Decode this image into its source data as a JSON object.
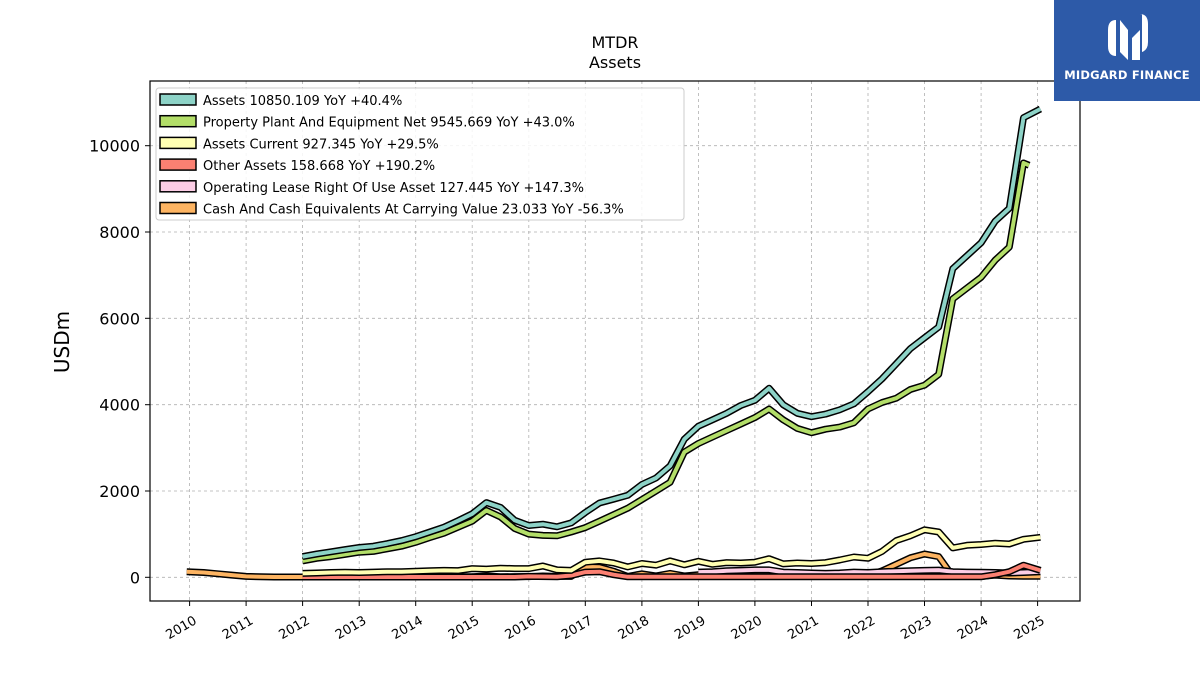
{
  "chart_data": {
    "type": "line",
    "title": "MTDR",
    "subtitle": "Assets",
    "ylabel": "USDm",
    "xlim": [
      2009.3,
      2025.75
    ],
    "ylim": [
      -550,
      11500
    ],
    "grid": true,
    "legend_position": "top-left",
    "x_ticks": [
      2010,
      2011,
      2012,
      2013,
      2014,
      2015,
      2016,
      2017,
      2018,
      2019,
      2020,
      2021,
      2022,
      2023,
      2024,
      2025
    ],
    "x_tick_labels": [
      "2010",
      "2011",
      "2012",
      "2013",
      "2014",
      "2015",
      "2016",
      "2017",
      "2018",
      "2019",
      "2020",
      "2021",
      "2022",
      "2023",
      "2024",
      "2025"
    ],
    "y_ticks": [
      0,
      2000,
      4000,
      6000,
      8000,
      10000
    ],
    "y_tick_labels": [
      "0",
      "2000",
      "4000",
      "6000",
      "8000",
      "10000"
    ],
    "series": [
      {
        "name": "Assets",
        "legend": "Assets  10850.109 YoY +40.4%",
        "color": "#8dd3c7",
        "points": [
          [
            2012.0,
            480
          ],
          [
            2012.25,
            540
          ],
          [
            2012.5,
            590
          ],
          [
            2012.75,
            640
          ],
          [
            2013.0,
            690
          ],
          [
            2013.25,
            720
          ],
          [
            2013.5,
            780
          ],
          [
            2013.75,
            850
          ],
          [
            2014.0,
            940
          ],
          [
            2014.25,
            1050
          ],
          [
            2014.5,
            1160
          ],
          [
            2014.75,
            1310
          ],
          [
            2015.0,
            1470
          ],
          [
            2015.25,
            1730
          ],
          [
            2015.5,
            1620
          ],
          [
            2015.75,
            1320
          ],
          [
            2016.0,
            1200
          ],
          [
            2016.25,
            1230
          ],
          [
            2016.5,
            1170
          ],
          [
            2016.75,
            1260
          ],
          [
            2017.0,
            1500
          ],
          [
            2017.25,
            1720
          ],
          [
            2017.5,
            1810
          ],
          [
            2017.75,
            1900
          ],
          [
            2018.0,
            2150
          ],
          [
            2018.25,
            2300
          ],
          [
            2018.5,
            2580
          ],
          [
            2018.75,
            3200
          ],
          [
            2019.0,
            3500
          ],
          [
            2019.25,
            3650
          ],
          [
            2019.5,
            3800
          ],
          [
            2019.75,
            3980
          ],
          [
            2020.0,
            4100
          ],
          [
            2020.25,
            4380
          ],
          [
            2020.5,
            4000
          ],
          [
            2020.75,
            3800
          ],
          [
            2021.0,
            3720
          ],
          [
            2021.25,
            3780
          ],
          [
            2021.5,
            3880
          ],
          [
            2021.75,
            4020
          ],
          [
            2022.0,
            4300
          ],
          [
            2022.25,
            4600
          ],
          [
            2022.5,
            4950
          ],
          [
            2022.75,
            5300
          ],
          [
            2023.0,
            5550
          ],
          [
            2023.25,
            5800
          ],
          [
            2023.5,
            7150
          ],
          [
            2023.75,
            7450
          ],
          [
            2024.0,
            7750
          ],
          [
            2024.25,
            8250
          ],
          [
            2024.5,
            8550
          ],
          [
            2024.75,
            10650
          ],
          [
            2025.05,
            10850
          ]
        ]
      },
      {
        "name": "Property Plant And Equipment Net",
        "legend": "Property Plant And Equipment Net  9545.669 YoY +43.0%",
        "color": "#b3de69",
        "points": [
          [
            2012.0,
            380
          ],
          [
            2012.25,
            440
          ],
          [
            2012.5,
            480
          ],
          [
            2012.75,
            530
          ],
          [
            2013.0,
            580
          ],
          [
            2013.25,
            600
          ],
          [
            2013.5,
            660
          ],
          [
            2013.75,
            720
          ],
          [
            2014.0,
            810
          ],
          [
            2014.25,
            920
          ],
          [
            2014.5,
            1020
          ],
          [
            2014.75,
            1160
          ],
          [
            2015.0,
            1300
          ],
          [
            2015.25,
            1550
          ],
          [
            2015.5,
            1400
          ],
          [
            2015.75,
            1130
          ],
          [
            2016.0,
            1000
          ],
          [
            2016.25,
            970
          ],
          [
            2016.5,
            960
          ],
          [
            2016.75,
            1050
          ],
          [
            2017.0,
            1150
          ],
          [
            2017.25,
            1300
          ],
          [
            2017.5,
            1450
          ],
          [
            2017.75,
            1600
          ],
          [
            2018.0,
            1800
          ],
          [
            2018.25,
            2000
          ],
          [
            2018.5,
            2200
          ],
          [
            2018.75,
            2900
          ],
          [
            2019.0,
            3100
          ],
          [
            2019.25,
            3250
          ],
          [
            2019.5,
            3400
          ],
          [
            2019.75,
            3550
          ],
          [
            2020.0,
            3700
          ],
          [
            2020.25,
            3900
          ],
          [
            2020.5,
            3650
          ],
          [
            2020.75,
            3450
          ],
          [
            2021.0,
            3350
          ],
          [
            2021.25,
            3430
          ],
          [
            2021.5,
            3480
          ],
          [
            2021.75,
            3580
          ],
          [
            2022.0,
            3900
          ],
          [
            2022.25,
            4050
          ],
          [
            2022.5,
            4150
          ],
          [
            2022.75,
            4350
          ],
          [
            2023.0,
            4450
          ],
          [
            2023.25,
            4700
          ],
          [
            2023.5,
            6450
          ],
          [
            2023.75,
            6700
          ],
          [
            2024.0,
            6950
          ],
          [
            2024.25,
            7350
          ],
          [
            2024.5,
            7650
          ],
          [
            2024.75,
            9600
          ],
          [
            2024.85,
            9546
          ]
        ]
      },
      {
        "name": "Assets Current",
        "legend": "Assets Current  927.345 YoY +29.5%",
        "color": "#ffffb3",
        "points": [
          [
            2012.0,
            90
          ],
          [
            2012.25,
            100
          ],
          [
            2012.5,
            110
          ],
          [
            2012.75,
            115
          ],
          [
            2013.0,
            110
          ],
          [
            2013.25,
            120
          ],
          [
            2013.5,
            130
          ],
          [
            2013.75,
            130
          ],
          [
            2014.0,
            140
          ],
          [
            2014.25,
            150
          ],
          [
            2014.5,
            160
          ],
          [
            2014.75,
            155
          ],
          [
            2015.0,
            200
          ],
          [
            2015.25,
            190
          ],
          [
            2015.5,
            210
          ],
          [
            2015.75,
            200
          ],
          [
            2016.0,
            200
          ],
          [
            2016.25,
            260
          ],
          [
            2016.5,
            170
          ],
          [
            2016.75,
            160
          ],
          [
            2017.0,
            350
          ],
          [
            2017.25,
            380
          ],
          [
            2017.5,
            330
          ],
          [
            2017.75,
            240
          ],
          [
            2018.0,
            320
          ],
          [
            2018.25,
            280
          ],
          [
            2018.5,
            380
          ],
          [
            2018.75,
            290
          ],
          [
            2019.0,
            370
          ],
          [
            2019.25,
            300
          ],
          [
            2019.5,
            340
          ],
          [
            2019.75,
            330
          ],
          [
            2020.0,
            350
          ],
          [
            2020.25,
            430
          ],
          [
            2020.5,
            310
          ],
          [
            2020.75,
            330
          ],
          [
            2021.0,
            320
          ],
          [
            2021.25,
            340
          ],
          [
            2021.5,
            400
          ],
          [
            2021.75,
            470
          ],
          [
            2022.0,
            440
          ],
          [
            2022.25,
            600
          ],
          [
            2022.5,
            850
          ],
          [
            2022.75,
            960
          ],
          [
            2023.0,
            1100
          ],
          [
            2023.25,
            1050
          ],
          [
            2023.5,
            680
          ],
          [
            2023.75,
            740
          ],
          [
            2024.0,
            760
          ],
          [
            2024.25,
            790
          ],
          [
            2024.5,
            770
          ],
          [
            2024.75,
            880
          ],
          [
            2025.05,
            927
          ]
        ]
      },
      {
        "name": "Other Assets",
        "legend": "Other Assets  158.668 YoY +190.2%",
        "color": "#fb8072",
        "points": [
          [
            2012.0,
            5
          ],
          [
            2013.0,
            5
          ],
          [
            2014.0,
            5
          ],
          [
            2015.0,
            5
          ],
          [
            2015.75,
            5
          ],
          [
            2016.0,
            20
          ],
          [
            2016.5,
            10
          ],
          [
            2016.75,
            40
          ],
          [
            2017.0,
            120
          ],
          [
            2017.25,
            130
          ],
          [
            2017.5,
            60
          ],
          [
            2017.75,
            10
          ],
          [
            2018.0,
            10
          ],
          [
            2018.5,
            10
          ],
          [
            2019.0,
            10
          ],
          [
            2020.0,
            10
          ],
          [
            2021.0,
            10
          ],
          [
            2022.0,
            10
          ],
          [
            2023.0,
            10
          ],
          [
            2023.5,
            10
          ],
          [
            2024.0,
            10
          ],
          [
            2024.25,
            60
          ],
          [
            2024.5,
            130
          ],
          [
            2024.75,
            280
          ],
          [
            2025.05,
            159
          ]
        ]
      },
      {
        "name": "Operating Lease Right Of Use Asset",
        "legend": "Operating Lease Right Of Use Asset  127.445 YoY +147.3%",
        "color": "#fccde5",
        "points": [
          [
            2019.0,
            120
          ],
          [
            2019.25,
            130
          ],
          [
            2019.5,
            150
          ],
          [
            2019.75,
            160
          ],
          [
            2020.0,
            170
          ],
          [
            2020.25,
            170
          ],
          [
            2020.5,
            120
          ],
          [
            2020.75,
            110
          ],
          [
            2021.0,
            100
          ],
          [
            2021.25,
            90
          ],
          [
            2021.5,
            100
          ],
          [
            2021.75,
            120
          ],
          [
            2022.0,
            110
          ],
          [
            2022.25,
            130
          ],
          [
            2022.5,
            140
          ],
          [
            2022.75,
            150
          ],
          [
            2023.0,
            160
          ],
          [
            2023.25,
            165
          ],
          [
            2023.5,
            130
          ],
          [
            2023.75,
            120
          ],
          [
            2024.0,
            115
          ],
          [
            2024.25,
            110
          ],
          [
            2024.5,
            100
          ],
          [
            2024.75,
            110
          ],
          [
            2025.05,
            127
          ]
        ]
      },
      {
        "name": "Cash And Cash Equivalents At Carrying Value",
        "legend": "Cash And Cash Equivalents At Carrying Value  23.033 YoY -56.3%",
        "color": "#fdb462",
        "points": [
          [
            2009.95,
            130
          ],
          [
            2010.25,
            110
          ],
          [
            2010.5,
            80
          ],
          [
            2010.75,
            50
          ],
          [
            2011.0,
            20
          ],
          [
            2011.25,
            10
          ],
          [
            2011.5,
            5
          ],
          [
            2012.0,
            5
          ],
          [
            2012.5,
            10
          ],
          [
            2013.0,
            10
          ],
          [
            2013.5,
            10
          ],
          [
            2014.0,
            10
          ],
          [
            2014.5,
            15
          ],
          [
            2015.0,
            10
          ],
          [
            2015.25,
            30
          ],
          [
            2015.5,
            10
          ],
          [
            2015.75,
            15
          ],
          [
            2016.0,
            15
          ],
          [
            2016.25,
            30
          ],
          [
            2016.5,
            20
          ],
          [
            2016.75,
            20
          ],
          [
            2017.0,
            240
          ],
          [
            2017.25,
            230
          ],
          [
            2017.5,
            140
          ],
          [
            2017.75,
            20
          ],
          [
            2018.0,
            80
          ],
          [
            2018.25,
            30
          ],
          [
            2018.5,
            90
          ],
          [
            2018.75,
            30
          ],
          [
            2019.0,
            60
          ],
          [
            2019.25,
            20
          ],
          [
            2019.5,
            40
          ],
          [
            2019.75,
            20
          ],
          [
            2020.0,
            45
          ],
          [
            2020.25,
            50
          ],
          [
            2020.5,
            30
          ],
          [
            2020.75,
            20
          ],
          [
            2021.0,
            40
          ],
          [
            2021.25,
            30
          ],
          [
            2021.5,
            40
          ],
          [
            2021.75,
            60
          ],
          [
            2022.0,
            40
          ],
          [
            2022.25,
            150
          ],
          [
            2022.5,
            300
          ],
          [
            2022.75,
            450
          ],
          [
            2023.0,
            540
          ],
          [
            2023.25,
            480
          ],
          [
            2023.5,
            20
          ],
          [
            2023.75,
            20
          ],
          [
            2024.0,
            20
          ],
          [
            2024.25,
            50
          ],
          [
            2024.5,
            30
          ],
          [
            2024.75,
            25
          ],
          [
            2025.05,
            23
          ]
        ]
      }
    ]
  },
  "brand": {
    "name": "MIDGARD FINANCE",
    "logo_icon": "midgard-finance-logo-icon",
    "color": "#2d5aa8"
  }
}
